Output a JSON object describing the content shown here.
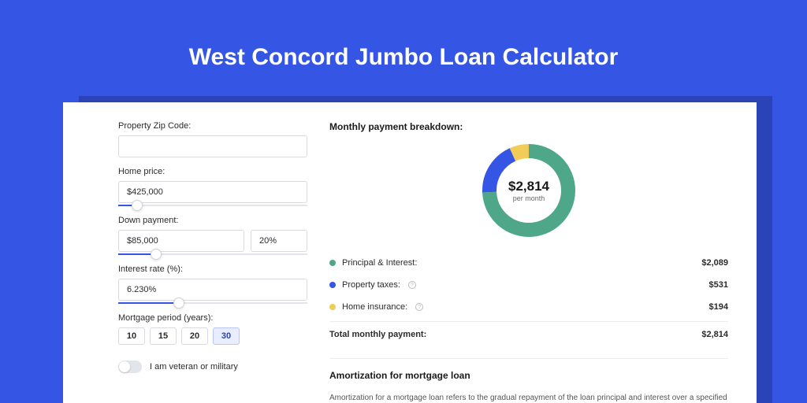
{
  "page": {
    "title": "West Concord Jumbo Loan Calculator",
    "bg_color": "#3555e5",
    "card_bg": "#ffffff",
    "shadow_bg": "#2a44b8"
  },
  "form": {
    "zip": {
      "label": "Property Zip Code:",
      "value": ""
    },
    "home_price": {
      "label": "Home price:",
      "value": "$425,000",
      "slider_pct": 10
    },
    "down_payment": {
      "label": "Down payment:",
      "amount": "$85,000",
      "percent": "20%",
      "slider_pct": 20
    },
    "interest_rate": {
      "label": "Interest rate (%):",
      "value": "6.230%",
      "slider_pct": 32
    },
    "period": {
      "label": "Mortgage period (years):",
      "options": [
        "10",
        "15",
        "20",
        "30"
      ],
      "selected": "30"
    },
    "veteran": {
      "label": "I am veteran or military",
      "checked": false
    }
  },
  "breakdown": {
    "title": "Monthly payment breakdown:",
    "total_amount": "$2,814",
    "total_sub": "per month",
    "donut": {
      "radius": 50,
      "stroke": 18,
      "slices": [
        {
          "label": "Principal & Interest:",
          "value": "$2,089",
          "color": "#4fa789",
          "pct": 74.2
        },
        {
          "label": "Property taxes:",
          "value": "$531",
          "color": "#3555e5",
          "pct": 18.9,
          "info": true
        },
        {
          "label": "Home insurance:",
          "value": "$194",
          "color": "#f2cc58",
          "pct": 6.9,
          "info": true
        }
      ]
    },
    "total_row": {
      "label": "Total monthly payment:",
      "value": "$2,814"
    }
  },
  "amortization": {
    "title": "Amortization for mortgage loan",
    "text": "Amortization for a mortgage loan refers to the gradual repayment of the loan principal and interest over a specified"
  }
}
